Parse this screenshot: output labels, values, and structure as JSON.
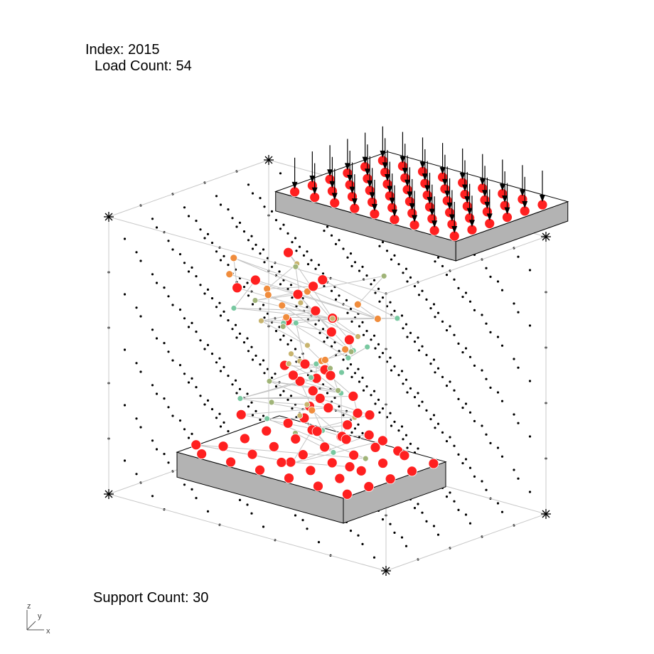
{
  "info": {
    "index_label": "Index:",
    "index_value": "2015",
    "load_label": "Load Count:",
    "load_value": "54",
    "support_label": "Support Count:",
    "support_value": "30"
  },
  "axis_gizmo": {
    "z": "z",
    "y": "y",
    "x": "x"
  },
  "model": {
    "grid_visible": true,
    "load_region": "top plate",
    "support_region": "bottom plate",
    "load_direction": "down (-z)"
  },
  "colors": {
    "background": "#ffffff",
    "plate_fill": "#b3b3b3",
    "plate_edge": "#000000",
    "bounding_box": "#c8c8c8",
    "grid_dot": "#000000",
    "member": "#c4c4c4",
    "load_arrow": "#000000",
    "node_high": "#ff2020",
    "node_mid": "#f08c3c",
    "node_low_1": "#c8b46e",
    "node_low_2": "#a0b478",
    "node_low_3": "#78c8a0"
  }
}
